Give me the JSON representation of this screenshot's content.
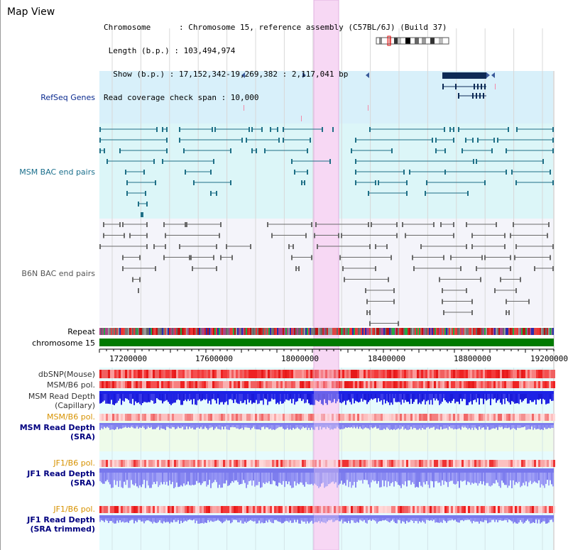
{
  "header": {
    "title": "Map View",
    "info_lines": [
      "Chromosome      : Chromosome 15, reference assembly (C57BL/6J) (Build 37)",
      " Length (b.p.) : 103,494,974",
      "  Show (b.p.) : 17,152,342-19,269,382 : 2,117,041 bp",
      "Read coverage check span : 10,000"
    ]
  },
  "tracks": {
    "refseq": "RefSeq Genes",
    "msm_bac": "MSM BAC end pairs",
    "b6n_bac": "B6N BAC end pairs",
    "repeat": "Repeat",
    "chromosome": "chromosome 15",
    "dbsnp": "dbSNP(Mouse)",
    "msm_b6_pol_1": "MSM/B6 pol.",
    "msm_read_depth_cap_1": "MSM Read Depth",
    "msm_read_depth_cap_2": "(Capillary)",
    "msm_b6_pol_2": "MSM/B6 pol.",
    "msm_read_depth_sra_1": "MSM Read Depth",
    "msm_read_depth_sra_2": "(SRA)",
    "jf1_b6_pol_1": "JF1/B6 pol.",
    "jf1_read_depth_1": "JF1 Read Depth",
    "jf1_read_depth_2": "(SRA)",
    "jf1_b6_pol_2": "JF1/B6 pol.",
    "jf1_read_depth_trim_1": "JF1 Read Depth",
    "jf1_read_depth_trim_2": "(SRA trimmed)"
  },
  "axis": {
    "ticks": [
      "17200000",
      "17600000",
      "18000000",
      "18400000",
      "18800000",
      "19200000"
    ]
  },
  "colors": {
    "highlight": "#f7d8f4",
    "refseq_bg": "#d8f0fa",
    "msm_bg": "#dcf6f8",
    "b6n_bg": "#f4f4fa",
    "chromosome": "#007a00",
    "msm_feature": "#1e6f86",
    "b6n_feature": "#6a6a6a",
    "refseq_feature": "#0d2a55",
    "read_depth_blue": "#1c22e6",
    "read_depth_light": "#8e8ef2"
  }
}
